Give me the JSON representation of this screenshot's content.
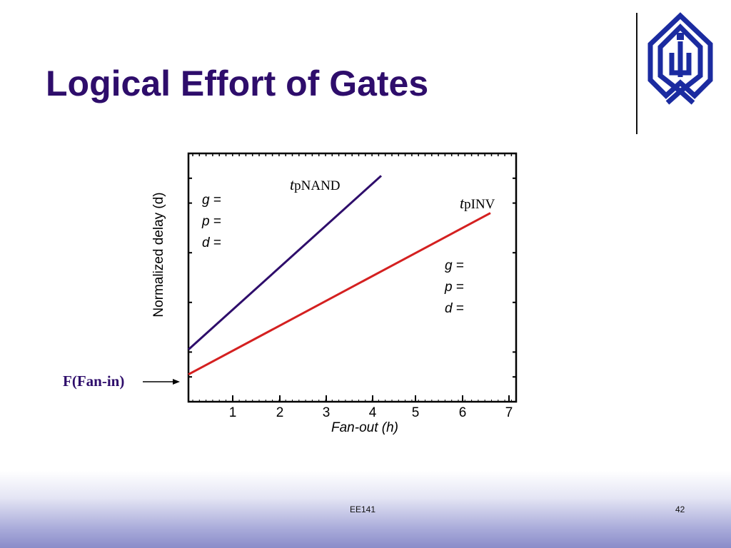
{
  "slide": {
    "title": "Logical Effort of Gates",
    "footer_course": "EE141",
    "page_number": "42",
    "title_color": "#2e0d6b"
  },
  "chart_data": {
    "type": "line",
    "xlabel": "Fan-out (h)",
    "ylabel": "Normalized delay (d)",
    "x_ticks": [
      "1",
      "2",
      "3",
      "4",
      "5",
      "6",
      "7"
    ],
    "xlim": [
      0,
      7
    ],
    "y_ticks_labeled": false,
    "series": [
      {
        "name_base": "t",
        "name_sub": "pNAND",
        "color": "#2e0d6b",
        "x": [
          0,
          4.2
        ],
        "y": [
          0.21,
          0.91
        ]
      },
      {
        "name_base": "t",
        "name_sub": "pINV",
        "color": "#d42020",
        "x": [
          0,
          6.6
        ],
        "y": [
          0.11,
          0.76
        ]
      }
    ],
    "annotations": {
      "nand_params": [
        "g =",
        "p =",
        "d ="
      ],
      "inv_params": [
        "g =",
        "p =",
        "d ="
      ],
      "fan_in_label": "F(Fan-in)"
    }
  },
  "icons": {
    "logo": "university-logo-icon",
    "arrow": "arrow-right-icon"
  }
}
